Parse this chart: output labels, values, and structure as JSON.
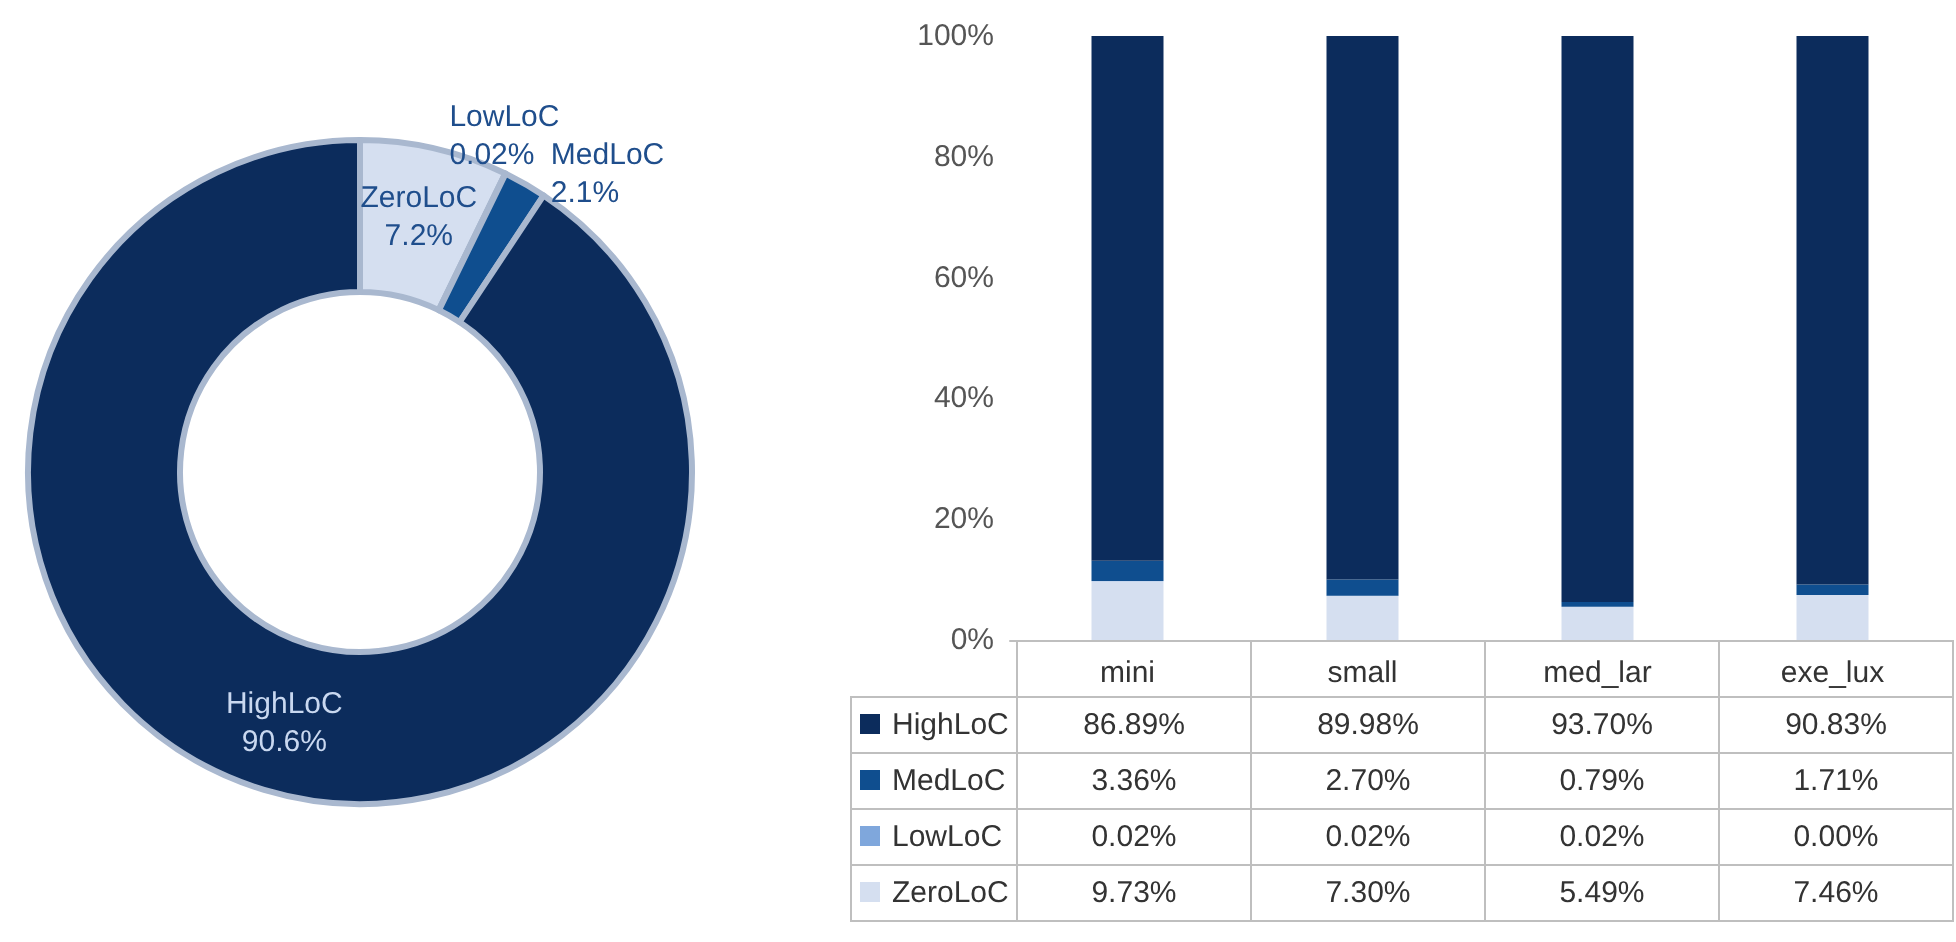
{
  "chart_data": [
    {
      "type": "donut",
      "categories": [
        "ZeroLoC",
        "LowLoC",
        "MedLoC",
        "HighLoC"
      ],
      "values": [
        7.2,
        0.02,
        2.1,
        90.6
      ],
      "value_labels": [
        "7.2%",
        "0.02%",
        "2.1%",
        "90.6%"
      ],
      "colors": [
        "#d5dff0",
        "#7fa7dc",
        "#0f4e8f",
        "#0c2c5c"
      ],
      "legend": false
    },
    {
      "type": "bar",
      "stacked": true,
      "categories": [
        "mini",
        "small",
        "med_lar",
        "exe_lux"
      ],
      "ylim": [
        0,
        100
      ],
      "yticks": [
        {
          "value": 0,
          "label": "0%"
        },
        {
          "value": 20,
          "label": "20%"
        },
        {
          "value": 40,
          "label": "40%"
        },
        {
          "value": 60,
          "label": "60%"
        },
        {
          "value": 80,
          "label": "80%"
        },
        {
          "value": 100,
          "label": "100%"
        }
      ],
      "grid": false,
      "legend": "bottom",
      "series": [
        {
          "name": "ZeroLoC",
          "color": "#d5dff0",
          "values": [
            9.73,
            7.3,
            5.49,
            7.46
          ],
          "value_labels": [
            "9.73%",
            "7.30%",
            "5.49%",
            "7.46%"
          ]
        },
        {
          "name": "LowLoC",
          "color": "#7fa7dc",
          "values": [
            0.02,
            0.02,
            0.02,
            0.0
          ],
          "value_labels": [
            "0.02%",
            "0.02%",
            "0.02%",
            "0.00%"
          ]
        },
        {
          "name": "MedLoC",
          "color": "#0f4e8f",
          "values": [
            3.36,
            2.7,
            0.79,
            1.71
          ],
          "value_labels": [
            "3.36%",
            "2.70%",
            "0.79%",
            "1.71%"
          ]
        },
        {
          "name": "HighLoC",
          "color": "#0c2c5c",
          "values": [
            86.89,
            89.98,
            93.7,
            90.83
          ],
          "value_labels": [
            "86.89%",
            "89.98%",
            "93.70%",
            "90.83%"
          ]
        }
      ]
    }
  ]
}
